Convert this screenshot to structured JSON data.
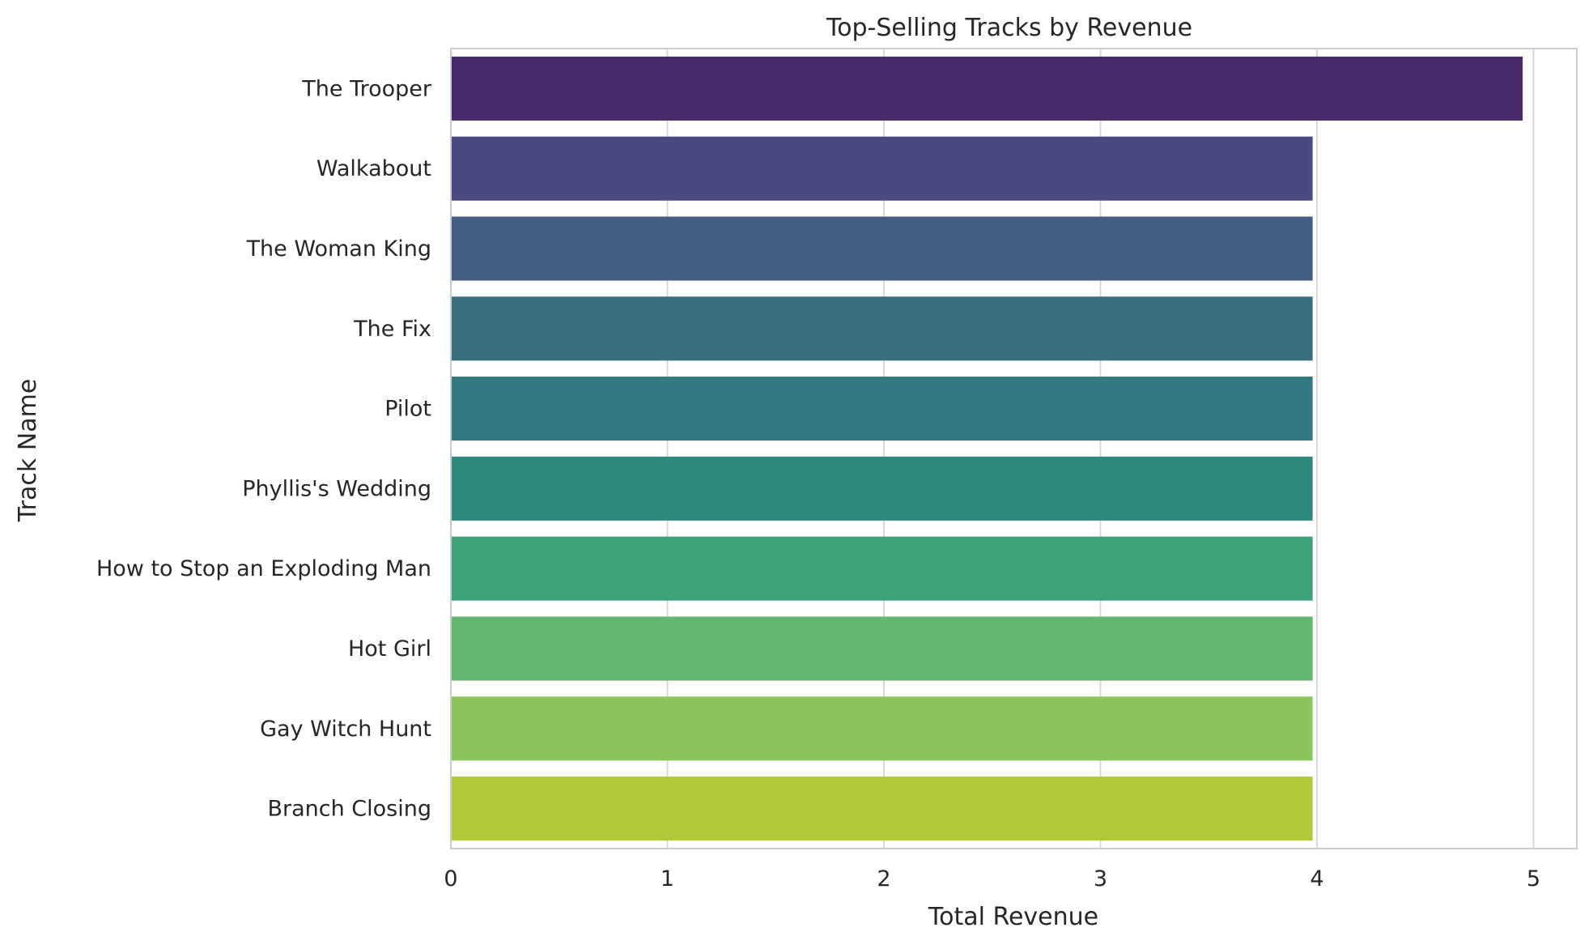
{
  "chart_data": {
    "type": "bar",
    "orientation": "horizontal",
    "title": "Top-Selling Tracks by Revenue",
    "xlabel": "Total Revenue",
    "ylabel": "Track Name",
    "categories": [
      "The Trooper",
      "Walkabout",
      "The Woman King",
      "The Fix",
      "Pilot",
      "Phyllis's Wedding",
      "How to Stop an Exploding Man",
      "Hot Girl",
      "Gay Witch Hunt",
      "Branch Closing"
    ],
    "values": [
      4.95,
      3.98,
      3.98,
      3.98,
      3.98,
      3.98,
      3.98,
      3.98,
      3.98,
      3.98
    ],
    "colors": [
      "#482a69",
      "#4a4a7e",
      "#435d83",
      "#396d80",
      "#327a80",
      "#2f8a7e",
      "#3ea278",
      "#61b86e",
      "#8ac55c",
      "#b2c73a"
    ],
    "xlim": [
      0,
      5.2
    ],
    "xticks": [
      0,
      1,
      2,
      3,
      4,
      5
    ],
    "grid": "x",
    "legend": "none"
  }
}
